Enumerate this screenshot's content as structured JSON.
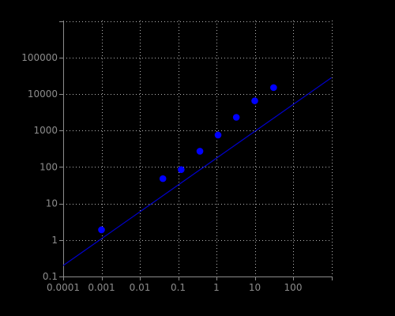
{
  "chart_data": {
    "type": "scatter",
    "title": "",
    "xlabel": "",
    "ylabel": "",
    "xscale": "log",
    "yscale": "log",
    "xlim": [
      0.0001,
      1000
    ],
    "ylim": [
      0.1,
      1000000
    ],
    "grid": true,
    "legend": "none",
    "x_ticks": [
      {
        "value": 0.0001,
        "label": "0.0001"
      },
      {
        "value": 0.001,
        "label": "0.001"
      },
      {
        "value": 0.01,
        "label": "0.01"
      },
      {
        "value": 0.1,
        "label": "0.1"
      },
      {
        "value": 1,
        "label": "1"
      },
      {
        "value": 10,
        "label": "10"
      },
      {
        "value": 100,
        "label": "100"
      }
    ],
    "x_grid_extra": [
      1000
    ],
    "y_ticks": [
      {
        "value": 0.1,
        "label": "0.1"
      },
      {
        "value": 1,
        "label": "1"
      },
      {
        "value": 10,
        "label": "10"
      },
      {
        "value": 100,
        "label": "100"
      },
      {
        "value": 1000,
        "label": "1000"
      },
      {
        "value": 10000,
        "label": "10000"
      },
      {
        "value": 100000,
        "label": "100000"
      }
    ],
    "y_grid_extra": [
      1000000
    ],
    "series": [
      {
        "kind": "points",
        "color": "#0000ff",
        "points": [
          {
            "x": 0.001,
            "y": 1.9
          },
          {
            "x": 0.04,
            "y": 48
          },
          {
            "x": 0.12,
            "y": 85
          },
          {
            "x": 0.37,
            "y": 270
          },
          {
            "x": 1.1,
            "y": 750
          },
          {
            "x": 3.3,
            "y": 2300
          },
          {
            "x": 10,
            "y": 6500
          },
          {
            "x": 31,
            "y": 15000
          }
        ]
      },
      {
        "kind": "fit-line",
        "color": "#0000cc",
        "points": [
          {
            "x": 0.0001,
            "y": 0.2
          },
          {
            "x": 1000,
            "y": 28000
          }
        ]
      }
    ]
  },
  "colors": {
    "background": "#000000",
    "axis": "#8c8c8c",
    "grid": "#b4b4b4",
    "tick_label": "#8c8c8c"
  }
}
